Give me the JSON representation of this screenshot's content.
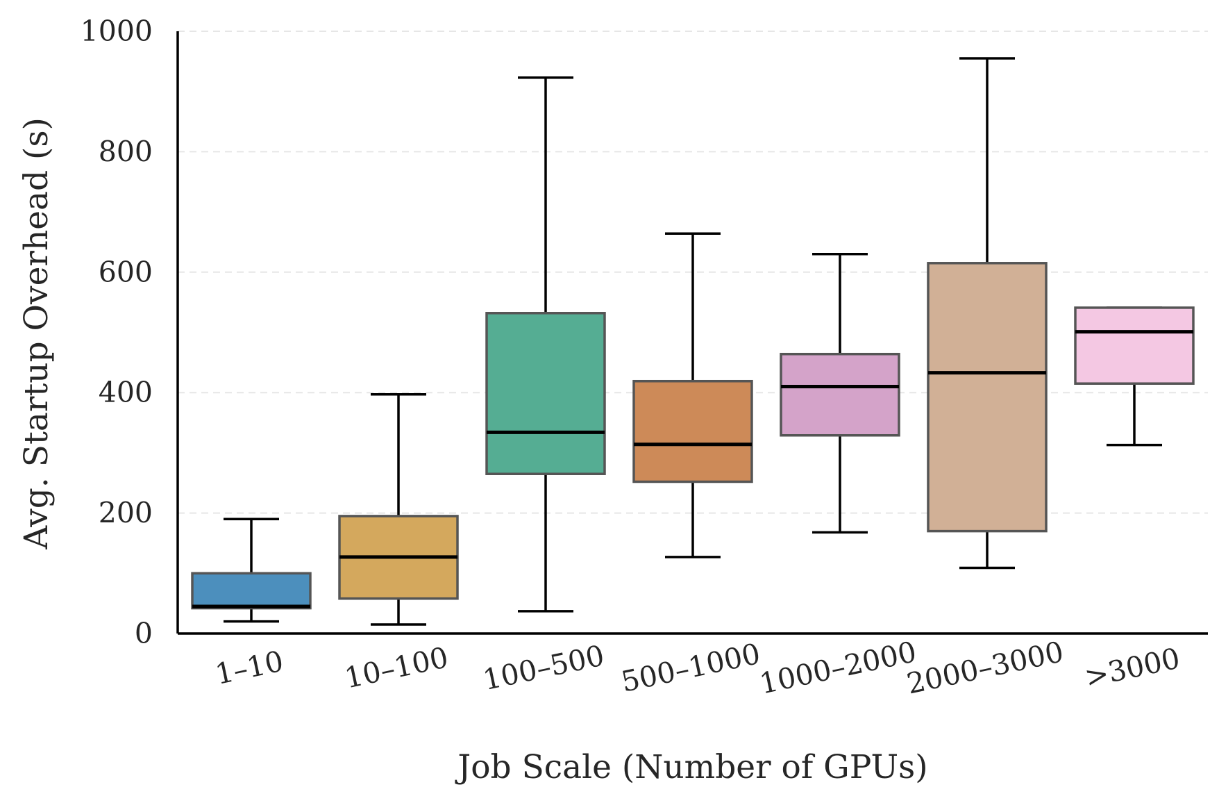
{
  "chart_data": {
    "type": "box",
    "title": "",
    "xlabel": "Job Scale (Number of GPUs)",
    "ylabel": "Avg. Startup Overhead (s)",
    "ylim": [
      0,
      1000
    ],
    "yticks": [
      "0",
      "200",
      "400",
      "600",
      "800",
      "1000"
    ],
    "grid": "horizontal dashed",
    "categories": [
      "1–10",
      "10–100",
      "100–500",
      "500–1000",
      "1000–2000",
      "2000–3000",
      ">3000"
    ],
    "boxes": [
      {
        "category": "1–10",
        "whisker_low": 20,
        "q1": 42,
        "median": 45,
        "q3": 100,
        "whisker_high": 190,
        "color": "#4c8fbd"
      },
      {
        "category": "10–100",
        "whisker_low": 15,
        "q1": 58,
        "median": 127,
        "q3": 195,
        "whisker_high": 397,
        "color": "#d4a85d"
      },
      {
        "category": "100–500",
        "whisker_low": 37,
        "q1": 265,
        "median": 334,
        "q3": 532,
        "whisker_high": 923,
        "color": "#55ad93"
      },
      {
        "category": "500–1000",
        "whisker_low": 127,
        "q1": 252,
        "median": 314,
        "q3": 419,
        "whisker_high": 664,
        "color": "#cd8a58"
      },
      {
        "category": "1000–2000",
        "whisker_low": 168,
        "q1": 329,
        "median": 410,
        "q3": 464,
        "whisker_high": 630,
        "color": "#d4a3c9"
      },
      {
        "category": "2000–3000",
        "whisker_low": 109,
        "q1": 170,
        "median": 433,
        "q3": 615,
        "whisker_high": 955,
        "color": "#d1b096"
      },
      {
        "category": ">3000",
        "whisker_low": 313,
        "q1": 415,
        "median": 501,
        "q3": 541,
        "whisker_high": 541,
        "color": "#f4c8e3"
      }
    ]
  }
}
